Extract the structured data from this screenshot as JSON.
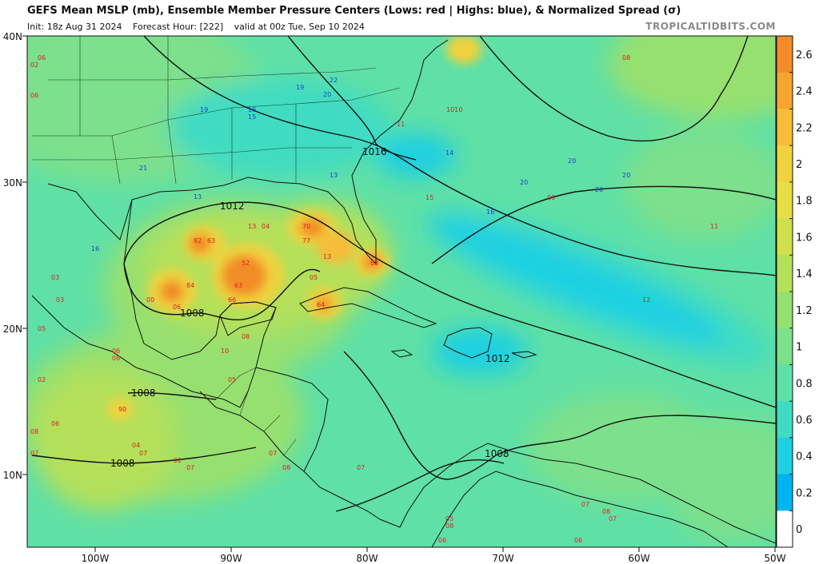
{
  "header": {
    "title": "GEFS Mean MSLP (mb), Ensemble Member Pressure Centers (Lows: red | Highs: blue), & Normalized Spread (σ)",
    "init": "Init: 18z Aug 31 2024",
    "forecast_hour": "Forecast Hour: [222]",
    "valid": "valid at 00z Tue, Sep 10 2024",
    "brand": "TROPICALTIDBITS.COM"
  },
  "map": {
    "lat_labels": [
      "40N",
      "30N",
      "20N",
      "10N"
    ],
    "lon_labels": [
      "100W",
      "90W",
      "80W",
      "70W",
      "60W",
      "50W"
    ],
    "isobar_labels": [
      "1016",
      "1012",
      "1008",
      "1012",
      "1008",
      "1008",
      "1008"
    ],
    "colorbar": {
      "ticks": [
        "2.6",
        "2.4",
        "2.2",
        "2",
        "1.8",
        "1.6",
        "1.4",
        "1.2",
        "1",
        "0.8",
        "0.6",
        "0.4",
        "0.2",
        "0"
      ],
      "colors": [
        "#f28c28",
        "#f7a531",
        "#f5bd3a",
        "#f0d23e",
        "#e6de45",
        "#cfe04c",
        "#b4e05a",
        "#96e070",
        "#7ce08c",
        "#5fe0a6",
        "#40dcc2",
        "#1fd0e2",
        "#00b4f0",
        "#ffffff"
      ]
    },
    "low_centers": [
      "02",
      "06",
      "06",
      "08",
      "1010",
      "11",
      "15",
      "09",
      "11",
      "12",
      "13",
      "04",
      "70",
      "82",
      "63",
      "77",
      "52",
      "13",
      "68",
      "84",
      "63",
      "00",
      "06",
      "66",
      "08",
      "05",
      "64",
      "03",
      "03",
      "05",
      "02",
      "06",
      "08",
      "10",
      "05",
      "90",
      "06",
      "08",
      "07",
      "04",
      "07",
      "02",
      "07",
      "07",
      "07",
      "08",
      "05",
      "08",
      "06",
      "07",
      "06",
      "08",
      "07"
    ],
    "high_centers": [
      "19",
      "16",
      "15",
      "19",
      "22",
      "20",
      "21",
      "13",
      "13",
      "14",
      "20",
      "20",
      "20",
      "20",
      "16",
      "16"
    ]
  }
}
